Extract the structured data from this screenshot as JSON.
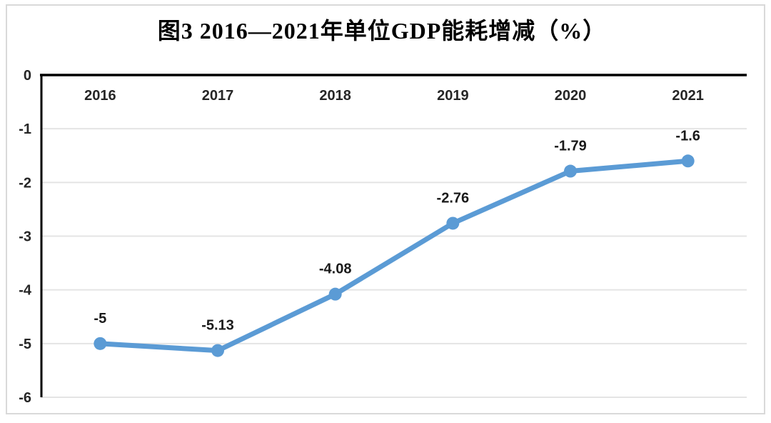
{
  "chart_data": {
    "type": "line",
    "title": "图3 2016—2021年单位GDP能耗增减（%）",
    "categories": [
      "2016",
      "2017",
      "2018",
      "2019",
      "2020",
      "2021"
    ],
    "series": [
      {
        "values": [
          -5,
          -5.13,
          -4.08,
          -2.76,
          -1.79,
          -1.6
        ],
        "point_labels": [
          "-5",
          "-5.13",
          "-4.08",
          "-2.76",
          "-1.79",
          "-1.6"
        ],
        "color": "#5B9BD5"
      }
    ],
    "xlabel": "",
    "ylabel": "",
    "ylim": [
      -6,
      0
    ],
    "y_ticks": [
      "0",
      "-1",
      "-2",
      "-3",
      "-4",
      "-5",
      "-6"
    ],
    "y_tick_values": [
      0,
      -1,
      -2,
      -3,
      -4,
      -5,
      -6
    ],
    "grid": true,
    "legend_position": "none",
    "category_labels_position": "top-inside",
    "colors": {
      "line": "#5B9BD5",
      "gridline": "#E4E4E4",
      "axis": "#000000",
      "tick_text": "#262626",
      "data_label_text": "#1A1A1A",
      "frame_border": "#D9D9D9",
      "background": "#FFFFFF"
    }
  }
}
